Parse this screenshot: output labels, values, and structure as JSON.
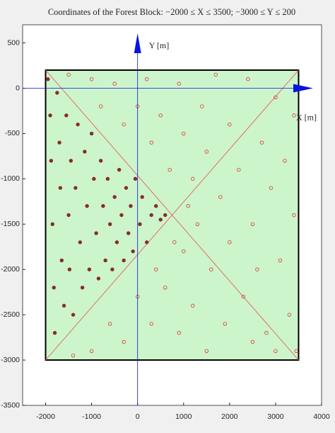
{
  "chart_data": {
    "type": "scatter",
    "title": "Coordinates of the Forest Block: −2000 ≤ X ≤ 3500; −3000 ≤ Y ≤ 200",
    "x_annotation": "X [m]",
    "y_annotation": "Y [m]",
    "xlim": [
      -2500,
      4000
    ],
    "ylim": [
      -3500,
      700
    ],
    "xticks": [
      -2000,
      -1000,
      0,
      1000,
      2000,
      3000,
      4000
    ],
    "yticks": [
      -3500,
      -3000,
      -2500,
      -2000,
      -1500,
      -1000,
      -500,
      0,
      500
    ],
    "block": {
      "x": [
        -2000,
        3500
      ],
      "y": [
        -3000,
        200
      ],
      "fill": "#ccf5cc",
      "diagonal_color": "#e07070"
    },
    "axes_color": "#0a14e0",
    "series": [
      {
        "color": "#e03030",
        "marker": "hollow",
        "x": [
          -1500,
          -1000,
          -800,
          -500,
          -300,
          0,
          200,
          300,
          500,
          700,
          900,
          1000,
          1200,
          1400,
          1500,
          1700,
          1800,
          2000,
          2200,
          2400,
          2500,
          2700,
          2900,
          3000,
          3200,
          3400,
          1000,
          1300,
          1600,
          2000,
          2300,
          2600,
          2800,
          3100,
          3300,
          3400,
          3450,
          3000,
          2500,
          1900,
          1500,
          1200,
          900,
          600,
          300,
          0,
          -300,
          -600,
          -1000,
          -1400,
          800,
          1100,
          400
        ],
        "y": [
          150,
          100,
          -200,
          50,
          -400,
          -200,
          100,
          -600,
          -300,
          -900,
          50,
          -500,
          -1000,
          -200,
          -700,
          150,
          -1200,
          -400,
          -900,
          100,
          -1500,
          -600,
          -1100,
          -100,
          -800,
          -300,
          -1800,
          -1500,
          -2000,
          -1700,
          -2300,
          -2000,
          -2700,
          -1900,
          -2500,
          -1400,
          -2900,
          -2900,
          -2800,
          -2600,
          -2900,
          -2400,
          -2700,
          -2200,
          -2600,
          -2300,
          -2800,
          -2600,
          -2900,
          -2950,
          -1700,
          -1300,
          -2000
        ]
      },
      {
        "color": "#8b2a2a",
        "marker": "filled",
        "x": [
          -1950,
          -1900,
          -1880,
          -1850,
          -1820,
          -1800,
          -1750,
          -1700,
          -1680,
          -1650,
          -1600,
          -1550,
          -1500,
          -1480,
          -1450,
          -1400,
          -1350,
          -1300,
          -1250,
          -1200,
          -1150,
          -1100,
          -1050,
          -1000,
          -950,
          -900,
          -850,
          -800,
          -750,
          -700,
          -650,
          -600,
          -550,
          -500,
          -450,
          -400,
          -350,
          -300,
          -250,
          -200,
          -150,
          -100,
          -50,
          50,
          100,
          200,
          300,
          400,
          500,
          600
        ],
        "y": [
          100,
          -300,
          -800,
          -1500,
          -2200,
          -2700,
          -50,
          -600,
          -1100,
          -1900,
          -2400,
          -300,
          -1400,
          -2000,
          -800,
          -2500,
          -1100,
          -400,
          -1700,
          -2200,
          -700,
          -1300,
          -2000,
          -500,
          -1000,
          -1600,
          -2100,
          -800,
          -1300,
          -1900,
          -1000,
          -1500,
          -2000,
          -1200,
          -1700,
          -900,
          -1400,
          -1900,
          -1100,
          -1600,
          -1300,
          -1800,
          -1000,
          -1500,
          -1200,
          -1700,
          -1400,
          -1300,
          -1450,
          -1400
        ]
      }
    ]
  }
}
